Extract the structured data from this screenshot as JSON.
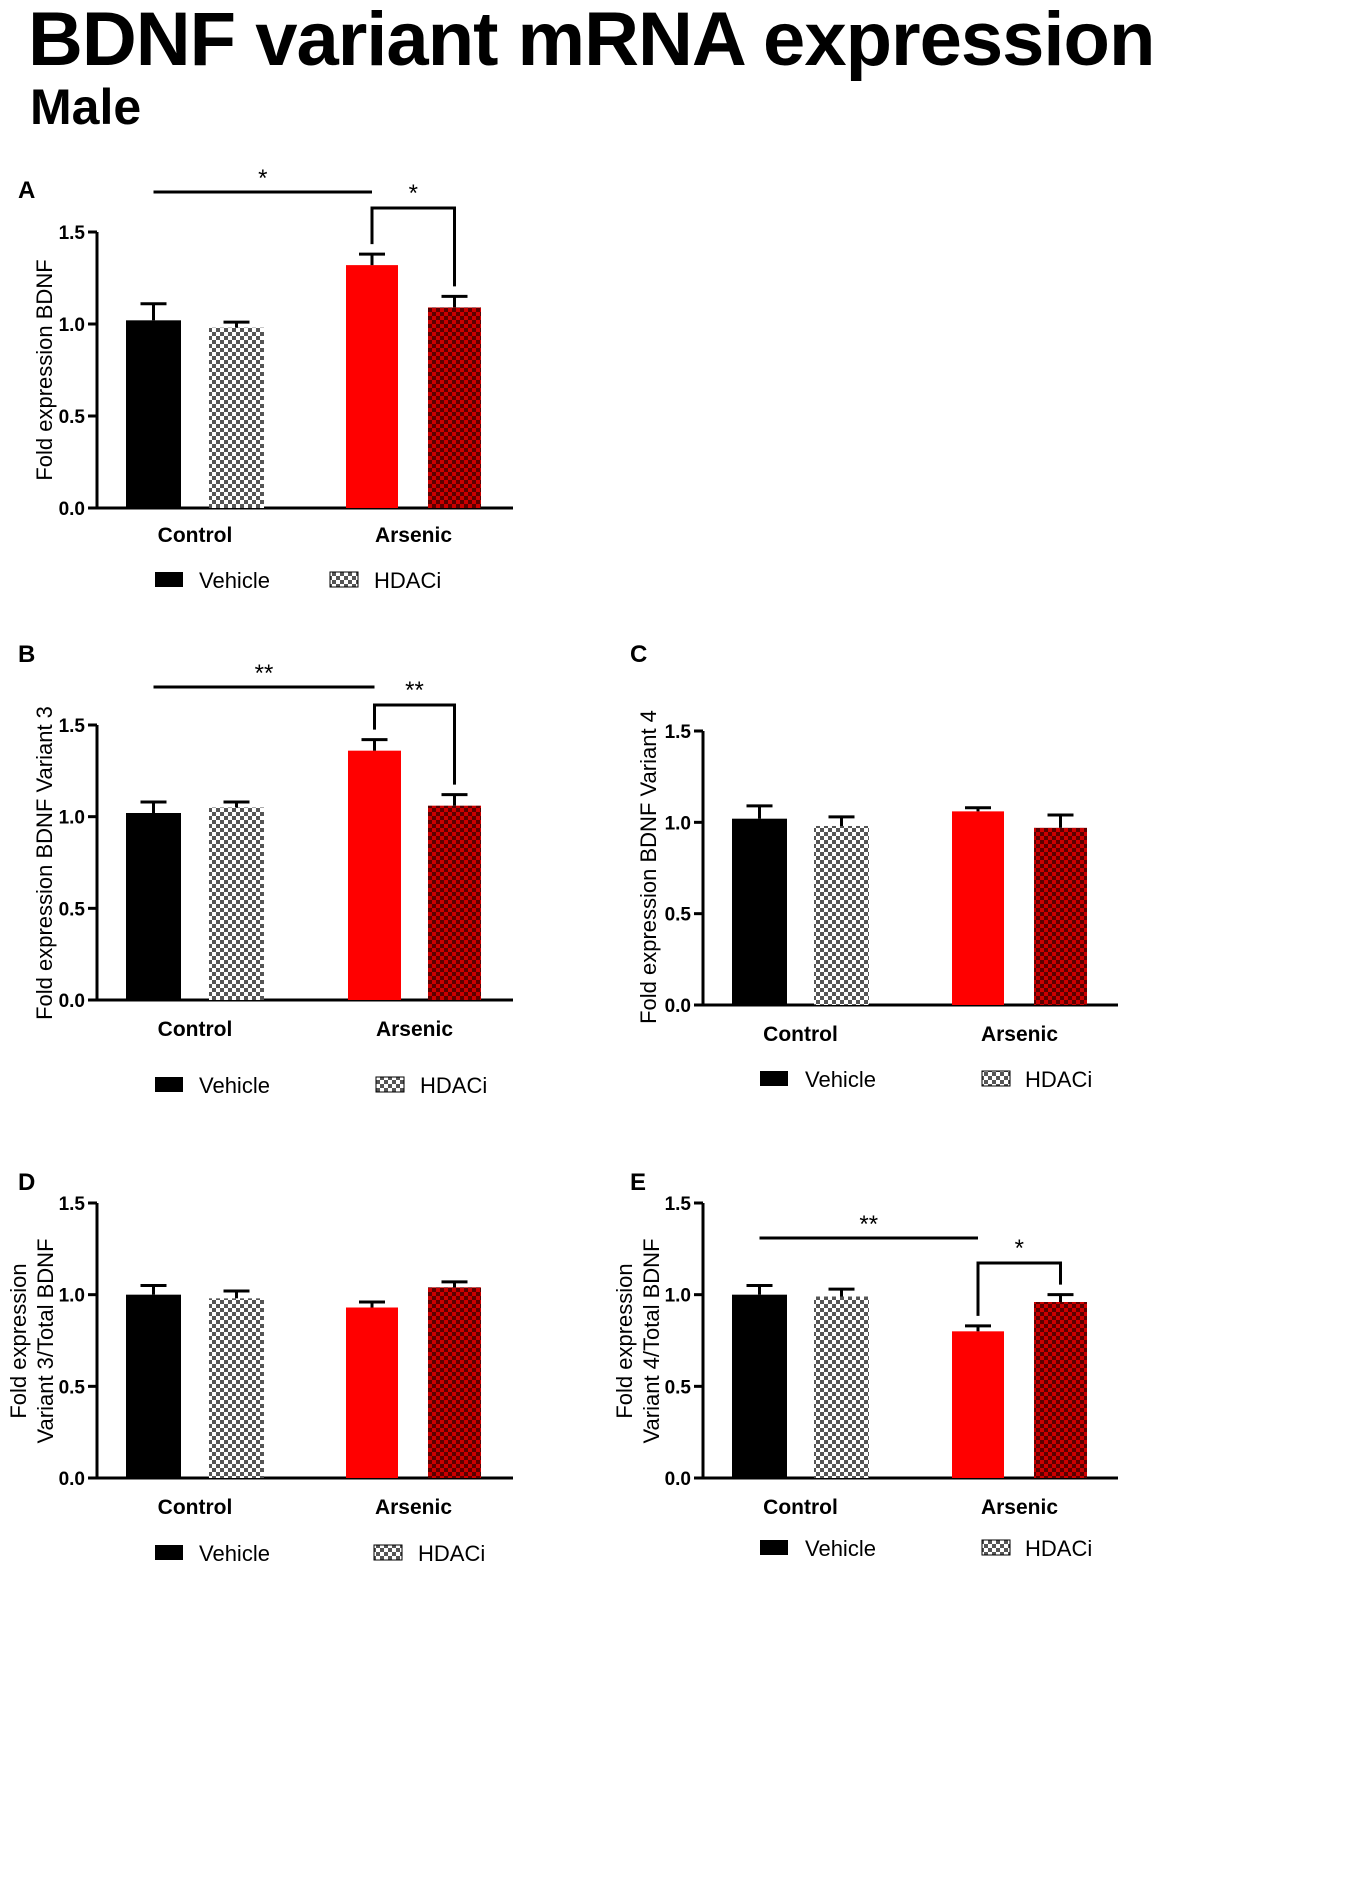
{
  "figure": {
    "title": "BDNF variant mRNA expression",
    "subtitle": "Male"
  },
  "colors": {
    "vehicle_control": "#000000",
    "hdaci_control_pattern": "#555555",
    "vehicle_arsenic": "#ff0000",
    "hdaci_arsenic_fill": "#cc0000",
    "hdaci_arsenic_pattern": "#5a0000",
    "axis": "#000000"
  },
  "chart_data": [
    {
      "panel": "A",
      "type": "bar",
      "ylabel": [
        "Fold expression BDNF"
      ],
      "categories": [
        "Control",
        "Arsenic"
      ],
      "series": [
        {
          "name": "Vehicle",
          "values": [
            1.02,
            1.32
          ],
          "errors": [
            0.09,
            0.06
          ]
        },
        {
          "name": "HDACi",
          "values": [
            0.98,
            1.09
          ],
          "errors": [
            0.03,
            0.06
          ]
        }
      ],
      "ylim": [
        0,
        1.5
      ],
      "yticks": [
        "0.0",
        "0.5",
        "1.0",
        "1.5"
      ],
      "legend": [
        "Vehicle",
        "HDACi"
      ],
      "annotations": [
        {
          "label": "*",
          "type": "line",
          "comparison": "Control Vehicle vs Arsenic Vehicle"
        },
        {
          "label": "*",
          "type": "bracket",
          "comparison": "Arsenic Vehicle vs Arsenic HDACi"
        }
      ]
    },
    {
      "panel": "B",
      "type": "bar",
      "ylabel": [
        "Fold expression BDNF Variant 3"
      ],
      "categories": [
        "Control",
        "Arsenic"
      ],
      "series": [
        {
          "name": "Vehicle",
          "values": [
            1.02,
            1.36
          ],
          "errors": [
            0.06,
            0.06
          ]
        },
        {
          "name": "HDACi",
          "values": [
            1.05,
            1.06
          ],
          "errors": [
            0.03,
            0.06
          ]
        }
      ],
      "ylim": [
        0,
        1.5
      ],
      "yticks": [
        "0.0",
        "0.5",
        "1.0",
        "1.5"
      ],
      "legend": [
        "Vehicle",
        "HDACi"
      ],
      "annotations": [
        {
          "label": "**",
          "type": "line",
          "comparison": "Control Vehicle vs Arsenic Vehicle"
        },
        {
          "label": "**",
          "type": "bracket",
          "comparison": "Arsenic Vehicle vs Arsenic HDACi"
        }
      ]
    },
    {
      "panel": "C",
      "type": "bar",
      "ylabel": [
        "Fold expression BDNF Variant 4"
      ],
      "categories": [
        "Control",
        "Arsenic"
      ],
      "series": [
        {
          "name": "Vehicle",
          "values": [
            1.02,
            1.06
          ],
          "errors": [
            0.07,
            0.02
          ]
        },
        {
          "name": "HDACi",
          "values": [
            0.98,
            0.97
          ],
          "errors": [
            0.05,
            0.07
          ]
        }
      ],
      "ylim": [
        0,
        1.5
      ],
      "yticks": [
        "0.0",
        "0.5",
        "1.0",
        "1.5"
      ],
      "legend": [
        "Vehicle",
        "HDACi"
      ],
      "annotations": []
    },
    {
      "panel": "D",
      "type": "bar",
      "ylabel": [
        "Fold expression",
        "Variant 3/Total BDNF"
      ],
      "categories": [
        "Control",
        "Arsenic"
      ],
      "series": [
        {
          "name": "Vehicle",
          "values": [
            1.0,
            0.93
          ],
          "errors": [
            0.05,
            0.03
          ]
        },
        {
          "name": "HDACi",
          "values": [
            0.98,
            1.04
          ],
          "errors": [
            0.04,
            0.03
          ]
        }
      ],
      "ylim": [
        0,
        1.5
      ],
      "yticks": [
        "0.0",
        "0.5",
        "1.0",
        "1.5"
      ],
      "legend": [
        "Vehicle",
        "HDACi"
      ],
      "annotations": []
    },
    {
      "panel": "E",
      "type": "bar",
      "ylabel": [
        "Fold expression",
        "Variant 4/Total BDNF"
      ],
      "categories": [
        "Control",
        "Arsenic"
      ],
      "series": [
        {
          "name": "Vehicle",
          "values": [
            1.0,
            0.8
          ],
          "errors": [
            0.05,
            0.03
          ]
        },
        {
          "name": "HDACi",
          "values": [
            0.99,
            0.96
          ],
          "errors": [
            0.04,
            0.04
          ]
        }
      ],
      "ylim": [
        0,
        1.5
      ],
      "yticks": [
        "0.0",
        "0.5",
        "1.0",
        "1.5"
      ],
      "legend": [
        "Vehicle",
        "HDACi"
      ],
      "annotations": [
        {
          "label": "**",
          "type": "line",
          "comparison": "Control Vehicle vs Arsenic Vehicle"
        },
        {
          "label": "*",
          "type": "bracket",
          "comparison": "Arsenic Vehicle vs Arsenic HDACi"
        }
      ]
    }
  ]
}
